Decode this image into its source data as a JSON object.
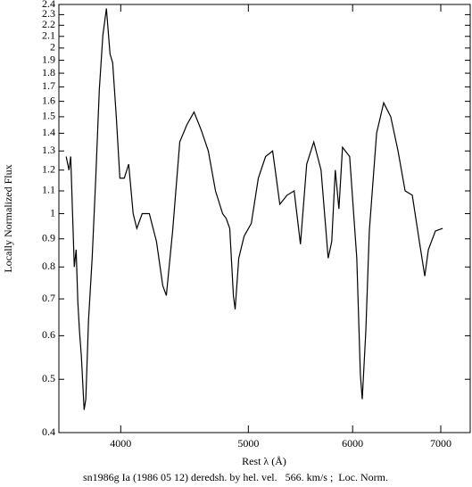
{
  "chart_data": {
    "type": "line",
    "caption": "sn1986g Ia (1986 05 12) deredsh. by hel. vel.   566. km/s ;  Loc. Norm.",
    "x_label": "Rest λ (Å)",
    "y_label": "Locally Normalized Flux",
    "log_x": true,
    "log_y": true,
    "color": "#000000",
    "xlim": [
      3590,
      7370
    ],
    "ylim": [
      0.4,
      2.4
    ],
    "xticks": [
      4000,
      5000,
      6000,
      7000
    ],
    "yticks": [
      0.4,
      0.5,
      0.6,
      0.7,
      0.8,
      0.9,
      1,
      1.1,
      1.2,
      1.3,
      1.4,
      1.5,
      1.6,
      1.7,
      1.8,
      1.9,
      2,
      2.1,
      2.2,
      2.3,
      2.4
    ],
    "x": [
      3636,
      3654,
      3665,
      3688,
      3700,
      3711,
      3722,
      3734,
      3752,
      3763,
      3781,
      3805,
      3829,
      3853,
      3877,
      3901,
      3926,
      3944,
      3969,
      3994,
      4025,
      4056,
      4088,
      4114,
      4153,
      4205,
      4258,
      4305,
      4332,
      4380,
      4435,
      4490,
      4547,
      4604,
      4662,
      4721,
      4780,
      4810,
      4840,
      4871,
      4886,
      4917,
      4963,
      5026,
      5088,
      5153,
      5217,
      5283,
      5350,
      5417,
      5477,
      5537,
      5606,
      5678,
      5749,
      5785,
      5821,
      5858,
      5895,
      5969,
      6044,
      6082,
      6102,
      6140,
      6178,
      6257,
      6335,
      6414,
      6496,
      6577,
      6660,
      6743,
      6807,
      6850,
      6935,
      7023
    ],
    "values": [
      1.27,
      1.2,
      1.27,
      0.8,
      0.86,
      0.69,
      0.61,
      0.55,
      0.44,
      0.46,
      0.64,
      0.83,
      1.16,
      1.68,
      2.11,
      2.36,
      1.95,
      1.88,
      1.5,
      1.16,
      1.16,
      1.23,
      1.0,
      0.94,
      1.0,
      1.0,
      0.89,
      0.74,
      0.71,
      0.93,
      1.35,
      1.45,
      1.53,
      1.42,
      1.3,
      1.1,
      1.0,
      0.98,
      0.94,
      0.71,
      0.67,
      0.83,
      0.91,
      0.96,
      1.16,
      1.27,
      1.3,
      1.04,
      1.08,
      1.1,
      0.88,
      1.23,
      1.35,
      1.2,
      0.83,
      0.89,
      1.2,
      1.02,
      1.32,
      1.27,
      0.83,
      0.51,
      0.46,
      0.61,
      0.93,
      1.4,
      1.59,
      1.5,
      1.3,
      1.1,
      1.08,
      0.89,
      0.77,
      0.86,
      0.93,
      0.94
    ]
  }
}
